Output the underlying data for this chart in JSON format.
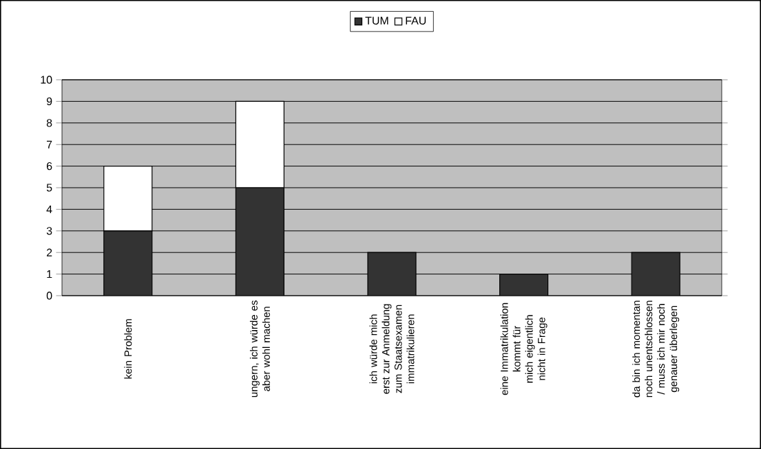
{
  "chart_data": {
    "type": "bar",
    "stacked": true,
    "categories": [
      "kein Problem",
      "ungern, ich würde es aber wohl machen",
      "ich würde mich erst zur Anmeldung zum Staatsexamen immatrikulieren",
      "eine Immatrikulation kommt für mich eigentlich nicht in Frage",
      "da bin ich momentan noch unentschlossen / muss ich mir noch genauer überlegen"
    ],
    "series": [
      {
        "name": "TUM",
        "color": "#333333",
        "values": [
          3,
          5,
          2,
          1,
          2
        ]
      },
      {
        "name": "FAU",
        "color": "#ffffff",
        "values": [
          3,
          4,
          null,
          null,
          null
        ]
      }
    ],
    "ylim": [
      0,
      10
    ],
    "yticks": [
      0,
      1,
      2,
      3,
      4,
      5,
      6,
      7,
      8,
      9,
      10
    ],
    "grid": "y",
    "legend": "top"
  }
}
